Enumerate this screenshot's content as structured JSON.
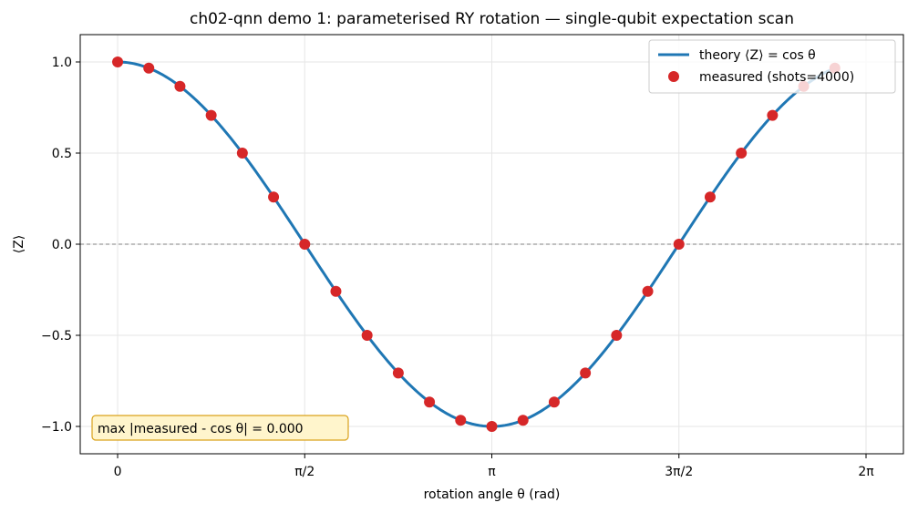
{
  "chart_data": {
    "type": "line",
    "title": "ch02-qnn demo 1: parameterised RY rotation — single-qubit expectation scan",
    "xlabel": "rotation angle θ (rad)",
    "ylabel": "⟨Z⟩",
    "xlim": [
      -0.314,
      6.597
    ],
    "ylim": [
      -1.15,
      1.15
    ],
    "grid": true,
    "legend_position": "top-right",
    "x_tick_labels": [
      "0",
      "π/2",
      "π",
      "3π/2",
      "2π"
    ],
    "x_tick_values": [
      0,
      1.5708,
      3.1416,
      4.7124,
      6.2832
    ],
    "y_tick_labels": [
      "1.0",
      "0.5",
      "0.0",
      "−0.5",
      "−1.0"
    ],
    "y_tick_values": [
      1.0,
      0.5,
      0.0,
      -0.5,
      -1.0
    ],
    "reference_line": {
      "y": 0.0,
      "style": "dashed"
    },
    "series": [
      {
        "name": "theory ⟨Z⟩ = cos θ",
        "kind": "line",
        "color": "#1f77b4",
        "function": "cos",
        "x_range": [
          0,
          6.02
        ]
      },
      {
        "name": "measured (shots=4000)",
        "kind": "scatter",
        "color": "#d62728",
        "x": [
          0,
          0.2618,
          0.5236,
          0.7854,
          1.0472,
          1.309,
          1.5708,
          1.8326,
          2.0944,
          2.3562,
          2.618,
          2.8798,
          3.1416,
          3.4034,
          3.6652,
          3.927,
          4.1888,
          4.4506,
          4.7124,
          4.9742,
          5.236,
          5.4978,
          5.7596,
          6.0214
        ],
        "y": [
          1.0,
          0.966,
          0.866,
          0.707,
          0.5,
          0.259,
          0.0,
          -0.259,
          -0.5,
          -0.707,
          -0.866,
          -0.966,
          -1.0,
          -0.966,
          -0.866,
          -0.707,
          -0.5,
          -0.259,
          0.0,
          0.259,
          0.5,
          0.707,
          0.866,
          0.966
        ]
      }
    ],
    "annotation": "max |measured - cos θ| = 0.000"
  }
}
